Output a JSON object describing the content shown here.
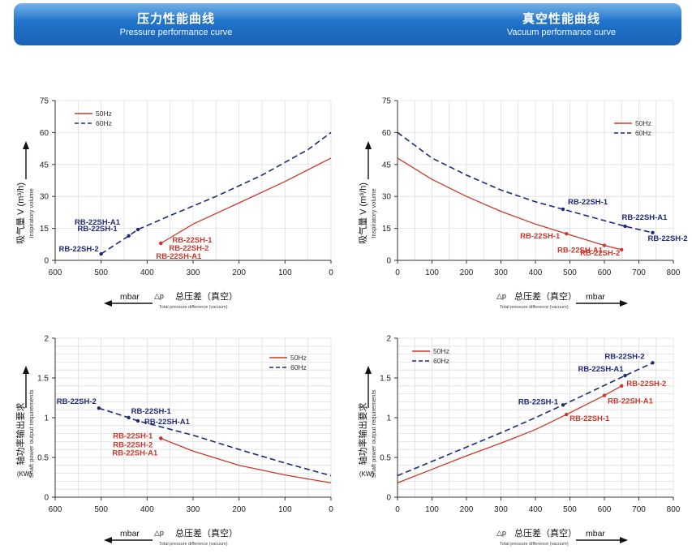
{
  "header": {
    "left_title_cn": "压力性能曲线",
    "left_title_en": "Pressure performance curve",
    "right_title_cn": "真空性能曲线",
    "right_title_en": "Vacuum performance curve"
  },
  "colors": {
    "hz50": "#c8392b",
    "hz60": "#1e2a78",
    "banner": "#1f6fc6",
    "grid": "#dddddd"
  },
  "chart_data": [
    {
      "id": "pressure-flow",
      "type": "line",
      "xlim": [
        600,
        0
      ],
      "xticks": [
        600,
        500,
        400,
        300,
        200,
        100,
        0
      ],
      "ylim": [
        0,
        75
      ],
      "yticks": [
        0,
        15,
        30,
        45,
        60,
        75
      ],
      "ylabel_cn": "吸气量 V (m³/h)",
      "ylabel_en": "Inspiratory volume",
      "unit": "mbar",
      "xlabel_delta": "△p",
      "xlabel_cn": "总压差（真空）",
      "xlabel_en": "Total pressure difference (vacuum)",
      "legend": [
        "50Hz",
        "60Hz"
      ],
      "legend_position": "top-left",
      "series": [
        {
          "name": "50Hz",
          "style": "solid",
          "x": [
            370,
            300,
            200,
            100,
            0
          ],
          "y": [
            8,
            17,
            27,
            37,
            48
          ]
        },
        {
          "name": "60Hz",
          "style": "dashed",
          "x": [
            500,
            440,
            420,
            350,
            250,
            150,
            50,
            0
          ],
          "y": [
            3,
            11.5,
            14.5,
            21,
            30,
            40,
            52,
            60
          ]
        }
      ],
      "annotations": [
        {
          "text": "RB-22SH-A1",
          "x": 420,
          "y": 14.5,
          "series": "60Hz"
        },
        {
          "text": "RB-22SH-1",
          "x": 440,
          "y": 11.5,
          "series": "60Hz"
        },
        {
          "text": "RB-22SH-2",
          "x": 500,
          "y": 3,
          "series": "60Hz"
        },
        {
          "text": "RB-22SH-1",
          "x": 370,
          "y": 8,
          "series": "50Hz"
        },
        {
          "text": "RB-22SH-2",
          "x": 370,
          "y": 8,
          "series": "50Hz"
        },
        {
          "text": "RB-22SH-A1",
          "x": 370,
          "y": 8,
          "series": "50Hz"
        }
      ]
    },
    {
      "id": "vacuum-flow",
      "type": "line",
      "xlim": [
        0,
        800
      ],
      "xticks": [
        0,
        100,
        200,
        300,
        400,
        500,
        600,
        700,
        800
      ],
      "ylim": [
        0,
        75
      ],
      "yticks": [
        0,
        15,
        30,
        45,
        60,
        75
      ],
      "ylabel_cn": "吸气量 V (m³/h)",
      "ylabel_en": "Inspiratory volume",
      "unit": "mbar",
      "xlabel_delta": "△p",
      "xlabel_cn": "总压差（真空）",
      "xlabel_en": "Total pressure difference (vacuum)",
      "legend": [
        "50Hz",
        "60Hz"
      ],
      "legend_position": "top-right",
      "series": [
        {
          "name": "50Hz",
          "style": "solid",
          "x": [
            0,
            100,
            200,
            300,
            400,
            490,
            600,
            650
          ],
          "y": [
            48,
            38,
            30,
            23,
            17,
            12.5,
            7,
            5
          ]
        },
        {
          "name": "60Hz",
          "style": "dashed",
          "x": [
            0,
            100,
            200,
            300,
            400,
            480,
            660,
            740
          ],
          "y": [
            60,
            48,
            40,
            33,
            27.5,
            24,
            16,
            13
          ]
        }
      ],
      "annotations": [
        {
          "text": "RB-22SH-1",
          "x": 480,
          "y": 24,
          "series": "60Hz"
        },
        {
          "text": "RB-22SH-A1",
          "x": 660,
          "y": 16,
          "series": "60Hz"
        },
        {
          "text": "RB-22SH-2",
          "x": 740,
          "y": 13,
          "series": "60Hz"
        },
        {
          "text": "RB-22SH-1",
          "x": 490,
          "y": 12.5,
          "series": "50Hz"
        },
        {
          "text": "RB-22SH-A1",
          "x": 600,
          "y": 7,
          "series": "50Hz"
        },
        {
          "text": "RB-22SH-2",
          "x": 650,
          "y": 5,
          "series": "50Hz"
        }
      ]
    },
    {
      "id": "pressure-power",
      "type": "line",
      "xlim": [
        600,
        0
      ],
      "xticks": [
        600,
        500,
        400,
        300,
        200,
        100,
        0
      ],
      "ylim": [
        0,
        2
      ],
      "yticks": [
        0,
        0.5,
        1,
        1.5,
        2
      ],
      "ylabel_cn": "轴功率输出要求",
      "ylabel_en": "Shaft power output requirements",
      "ylabel_unit": "(KW)",
      "unit": "mbar",
      "xlabel_delta": "△p",
      "xlabel_cn": "总压差（真空）",
      "xlabel_en": "Total pressure difference (vacuum)",
      "legend": [
        "50Hz",
        "60Hz"
      ],
      "legend_position": "top-right",
      "series": [
        {
          "name": "50Hz",
          "style": "solid",
          "x": [
            370,
            300,
            200,
            100,
            0
          ],
          "y": [
            0.74,
            0.58,
            0.4,
            0.28,
            0.18
          ]
        },
        {
          "name": "60Hz",
          "style": "dashed",
          "x": [
            505,
            440,
            420,
            300,
            200,
            100,
            0
          ],
          "y": [
            1.12,
            1.0,
            0.96,
            0.78,
            0.6,
            0.43,
            0.27
          ]
        }
      ],
      "annotations": [
        {
          "text": "RB-22SH-2",
          "x": 505,
          "y": 1.12,
          "series": "60Hz"
        },
        {
          "text": "RB-22SH-1",
          "x": 440,
          "y": 1.0,
          "series": "60Hz"
        },
        {
          "text": "RB-22SH-A1",
          "x": 420,
          "y": 0.96,
          "series": "60Hz"
        },
        {
          "text": "RB-22SH-1",
          "x": 370,
          "y": 0.74,
          "series": "50Hz"
        },
        {
          "text": "RB-22SH-2",
          "x": 370,
          "y": 0.74,
          "series": "50Hz"
        },
        {
          "text": "RB-22SH-A1",
          "x": 370,
          "y": 0.74,
          "series": "50Hz"
        }
      ]
    },
    {
      "id": "vacuum-power",
      "type": "line",
      "xlim": [
        0,
        800
      ],
      "xticks": [
        0,
        100,
        200,
        300,
        400,
        500,
        600,
        700,
        800
      ],
      "ylim": [
        0,
        2
      ],
      "yticks": [
        0,
        0.5,
        1,
        1.5,
        2
      ],
      "ylabel_cn": "轴功率输出要求",
      "ylabel_en": "Shaft power output requirements",
      "ylabel_unit": "(KW)",
      "unit": "mbar",
      "xlabel_delta": "△p",
      "xlabel_cn": "总压差（真空）",
      "xlabel_en": "Total pressure difference (vacuum)",
      "legend": [
        "50Hz",
        "60Hz"
      ],
      "legend_position": "top-left",
      "series": [
        {
          "name": "50Hz",
          "style": "solid",
          "x": [
            0,
            100,
            200,
            300,
            400,
            490,
            600,
            650
          ],
          "y": [
            0.18,
            0.35,
            0.52,
            0.68,
            0.85,
            1.04,
            1.28,
            1.4
          ]
        },
        {
          "name": "60Hz",
          "style": "dashed",
          "x": [
            0,
            100,
            200,
            300,
            400,
            480,
            660,
            740
          ],
          "y": [
            0.27,
            0.45,
            0.63,
            0.81,
            1.0,
            1.16,
            1.53,
            1.69
          ]
        }
      ],
      "annotations": [
        {
          "text": "RB-22SH-2",
          "x": 740,
          "y": 1.69,
          "series": "60Hz"
        },
        {
          "text": "RB-22SH-A1",
          "x": 660,
          "y": 1.53,
          "series": "60Hz"
        },
        {
          "text": "RB-22SH-1",
          "x": 480,
          "y": 1.16,
          "series": "60Hz"
        },
        {
          "text": "RB-22SH-2",
          "x": 650,
          "y": 1.4,
          "series": "50Hz"
        },
        {
          "text": "RB-22SH-A1",
          "x": 600,
          "y": 1.28,
          "series": "50Hz"
        },
        {
          "text": "RB-22SH-1",
          "x": 490,
          "y": 1.04,
          "series": "50Hz"
        }
      ]
    }
  ]
}
